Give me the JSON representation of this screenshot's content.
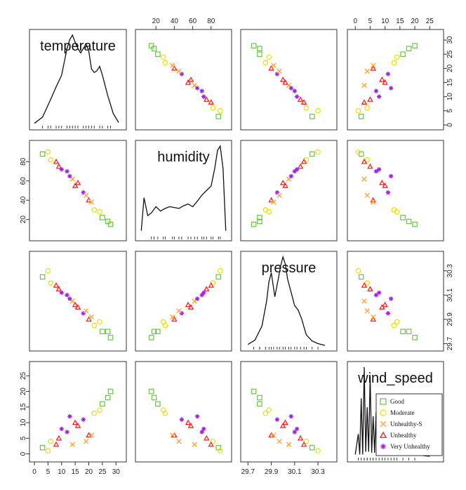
{
  "chart_data": {
    "type": "scatter",
    "variables": [
      "temperature",
      "humidity",
      "pressure",
      "wind_speed"
    ],
    "axes": {
      "temperature": {
        "ticks": [
          0,
          5,
          10,
          15,
          20,
          25,
          30
        ],
        "range": [
          0,
          32
        ]
      },
      "humidity": {
        "ticks": [
          20,
          40,
          60,
          80
        ],
        "range": [
          3,
          97
        ]
      },
      "pressure": {
        "ticks": [
          29.7,
          29.9,
          30.1,
          30.3
        ],
        "range": [
          29.68,
          30.42
        ]
      },
      "wind_speed": {
        "ticks": [
          0,
          5,
          10,
          15,
          20,
          25
        ],
        "range": [
          -1,
          28
        ]
      }
    },
    "legend": {
      "placement": "bottom-right",
      "entries": [
        {
          "label": "Good",
          "color": "#6cc24a",
          "marker": "square"
        },
        {
          "label": "Moderate",
          "color": "#e8e000",
          "marker": "circle"
        },
        {
          "label": "Unhealthy-S",
          "color": "#ffa533",
          "marker": "cross"
        },
        {
          "label": "Unhealthy",
          "color": "#ff2020",
          "marker": "triangle"
        },
        {
          "label": "Very Unhealthy",
          "color": "#a020f0",
          "marker": "star"
        }
      ]
    },
    "density_curves": {
      "temperature": {
        "x": [
          0,
          3,
          6,
          8,
          10,
          12,
          13,
          14,
          15,
          16,
          17,
          18,
          19,
          20,
          21,
          22,
          23,
          24,
          25,
          27,
          29,
          31
        ],
        "y": [
          0.01,
          0.08,
          0.28,
          0.42,
          0.55,
          0.85,
          0.95,
          1.0,
          0.92,
          0.85,
          0.8,
          0.85,
          0.9,
          0.82,
          0.62,
          0.58,
          0.6,
          0.65,
          0.55,
          0.32,
          0.12,
          0.02
        ]
      },
      "humidity": {
        "x": [
          4,
          7,
          11,
          15,
          20,
          25,
          30,
          35,
          40,
          45,
          50,
          55,
          60,
          65,
          70,
          75,
          80,
          84,
          87,
          90,
          93,
          96
        ],
        "y": [
          0.05,
          0.42,
          0.22,
          0.25,
          0.32,
          0.27,
          0.3,
          0.32,
          0.31,
          0.3,
          0.33,
          0.35,
          0.32,
          0.38,
          0.45,
          0.5,
          0.55,
          0.75,
          0.95,
          1.0,
          0.75,
          0.05
        ]
      },
      "pressure": {
        "x": [
          29.7,
          29.76,
          29.82,
          29.86,
          29.88,
          29.9,
          29.93,
          29.96,
          29.98,
          30.0,
          30.02,
          30.04,
          30.07,
          30.1,
          30.13,
          30.16,
          30.2,
          30.25,
          30.3,
          30.36
        ],
        "y": [
          0.01,
          0.06,
          0.22,
          0.5,
          0.72,
          0.82,
          0.55,
          0.75,
          0.9,
          1.0,
          0.92,
          0.75,
          0.6,
          0.45,
          0.4,
          0.3,
          0.12,
          0.05,
          0.02,
          0.0
        ]
      },
      "wind_speed": {
        "x": [
          0,
          1,
          1.5,
          2,
          2.5,
          3,
          3.5,
          4,
          4.5,
          5,
          5.5,
          6,
          6.5,
          7,
          7.5,
          8,
          8.5,
          9,
          10,
          11,
          12,
          13,
          14,
          16,
          18,
          20,
          22,
          25
        ],
        "y": [
          0.02,
          0.25,
          0.02,
          0.65,
          0.02,
          1.0,
          0.05,
          0.55,
          0.05,
          0.9,
          0.04,
          0.45,
          0.04,
          0.5,
          0.03,
          0.3,
          0.02,
          0.25,
          0.12,
          0.1,
          0.05,
          0.06,
          0.03,
          0.03,
          0.02,
          0.01,
          0.01,
          0.0
        ]
      }
    },
    "observations": {
      "temperature": [
        3,
        6,
        9,
        12,
        14,
        16,
        18,
        20,
        22,
        25,
        28,
        5,
        10,
        15,
        19,
        24,
        27,
        8,
        13,
        21
      ],
      "humidity": [
        88,
        82,
        75,
        70,
        62,
        58,
        48,
        40,
        30,
        22,
        15,
        90,
        72,
        55,
        45,
        28,
        18,
        80,
        65,
        38
      ],
      "pressure": [
        30.25,
        30.2,
        30.15,
        30.1,
        30.05,
        30.0,
        29.95,
        29.9,
        29.85,
        29.8,
        29.75,
        30.3,
        30.12,
        30.02,
        29.97,
        29.88,
        29.8,
        30.18,
        30.07,
        29.92
      ],
      "wind_speed": [
        2,
        4,
        5,
        7,
        3,
        9,
        11,
        6,
        13,
        16,
        20,
        1,
        8,
        10,
        4,
        14,
        18,
        3,
        12,
        6
      ],
      "category": [
        "Good",
        "Moderate",
        "Unhealthy",
        "Very Unhealthy",
        "Unhealthy-S",
        "Unhealthy",
        "Very Unhealthy",
        "Unhealthy",
        "Moderate",
        "Good",
        "Good",
        "Moderate",
        "Very Unhealthy",
        "Unhealthy",
        "Unhealthy-S",
        "Moderate",
        "Good",
        "Unhealthy",
        "Very Unhealthy",
        "Unhealthy-S"
      ]
    }
  }
}
